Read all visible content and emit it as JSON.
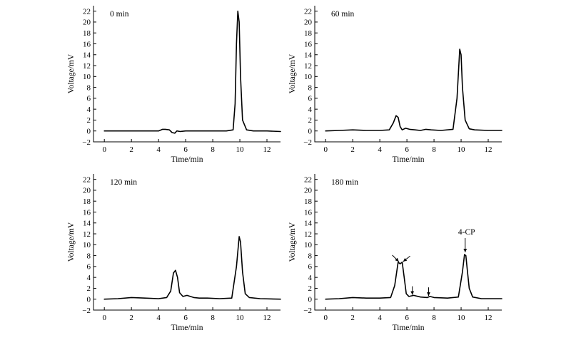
{
  "figure": {
    "x_axis_label": "Time/min",
    "y_axis_label": "Voltage/mV"
  },
  "chart_data": [
    {
      "type": "line",
      "title": "0 min",
      "xlabel": "Time/min",
      "ylabel": "Voltage/mV",
      "xlim": [
        -0.8,
        13
      ],
      "ylim": [
        -2,
        23
      ],
      "x_ticks": [
        0,
        2,
        4,
        6,
        8,
        10,
        12
      ],
      "y_ticks": [
        -2,
        0,
        2,
        4,
        6,
        8,
        10,
        12,
        14,
        16,
        18,
        20,
        22
      ],
      "series": [
        {
          "x": [
            0,
            2,
            4,
            4.3,
            4.5,
            4.8,
            5.0,
            5.2,
            5.35,
            5.6,
            6.0,
            7.0,
            8.0,
            9.0,
            9.5,
            9.65,
            9.75,
            9.85,
            9.95,
            10.05,
            10.2,
            10.5,
            11,
            12,
            13
          ],
          "y": [
            0,
            0,
            0,
            0.3,
            0.3,
            0.2,
            -0.3,
            -0.4,
            0,
            -0.1,
            0,
            0,
            0,
            0,
            0.2,
            5,
            16,
            22,
            20,
            10,
            2,
            0.2,
            0,
            0,
            -0.1
          ]
        }
      ],
      "annotations": []
    },
    {
      "type": "line",
      "title": "60 min",
      "xlabel": "Time/min",
      "ylabel": "Voltage/mV",
      "xlim": [
        -0.8,
        13
      ],
      "ylim": [
        -2,
        23
      ],
      "x_ticks": [
        0,
        2,
        4,
        6,
        8,
        10,
        12
      ],
      "y_ticks": [
        -2,
        0,
        2,
        4,
        6,
        8,
        10,
        12,
        14,
        16,
        18,
        20,
        22
      ],
      "series": [
        {
          "x": [
            0,
            1,
            2,
            3,
            4,
            4.7,
            5.0,
            5.2,
            5.35,
            5.5,
            5.65,
            5.9,
            6.2,
            6.6,
            7.0,
            7.4,
            7.8,
            8.5,
            9.4,
            9.7,
            9.9,
            10.0,
            10.1,
            10.3,
            10.6,
            11,
            12,
            13
          ],
          "y": [
            0,
            0.1,
            0.2,
            0.1,
            0.1,
            0.2,
            1.5,
            2.8,
            2.5,
            0.8,
            0.2,
            0.5,
            0.3,
            0.2,
            0.1,
            0.3,
            0.2,
            0.1,
            0.3,
            6,
            15,
            14,
            8,
            2,
            0.4,
            0.2,
            0.1,
            0.1
          ]
        }
      ],
      "annotations": []
    },
    {
      "type": "line",
      "title": "120 min",
      "xlabel": "Time/min",
      "ylabel": "Voltage/mV",
      "xlim": [
        -0.8,
        13
      ],
      "ylim": [
        -2,
        23
      ],
      "x_ticks": [
        0,
        2,
        4,
        6,
        8,
        10,
        12
      ],
      "y_ticks": [
        -2,
        0,
        2,
        4,
        6,
        8,
        10,
        12,
        14,
        16,
        18,
        20,
        22
      ],
      "series": [
        {
          "x": [
            0,
            1,
            2,
            3,
            4,
            4.6,
            4.9,
            5.1,
            5.25,
            5.4,
            5.55,
            5.8,
            6.1,
            6.6,
            7.0,
            7.6,
            8.5,
            9.4,
            9.75,
            9.95,
            10.05,
            10.2,
            10.4,
            10.7,
            11.5,
            13
          ],
          "y": [
            0,
            0.1,
            0.3,
            0.2,
            0.1,
            0.3,
            1.5,
            4.8,
            5.3,
            4.0,
            1.2,
            0.5,
            0.7,
            0.3,
            0.2,
            0.2,
            0.1,
            0.2,
            6,
            11.5,
            10.5,
            5,
            1,
            0.3,
            0.1,
            0
          ]
        }
      ],
      "annotations": []
    },
    {
      "type": "line",
      "title": "180 min",
      "xlabel": "Time/min",
      "ylabel": "Voltage/mV",
      "xlim": [
        -0.8,
        13
      ],
      "ylim": [
        -2,
        23
      ],
      "x_ticks": [
        0,
        2,
        4,
        6,
        8,
        10,
        12
      ],
      "y_ticks": [
        -2,
        0,
        2,
        4,
        6,
        8,
        10,
        12,
        14,
        16,
        18,
        20,
        22
      ],
      "series": [
        {
          "x": [
            0,
            1,
            2,
            3,
            4,
            4.8,
            5.1,
            5.35,
            5.5,
            5.65,
            5.8,
            5.95,
            6.15,
            6.5,
            7.0,
            7.5,
            7.7,
            8.0,
            9.0,
            9.8,
            10.1,
            10.25,
            10.35,
            10.45,
            10.6,
            10.85,
            11.5,
            13
          ],
          "y": [
            0,
            0.1,
            0.3,
            0.2,
            0.2,
            0.3,
            2.5,
            6.8,
            6.5,
            6.8,
            4.0,
            1.0,
            0.5,
            0.7,
            0.4,
            0.3,
            0.5,
            0.3,
            0.2,
            0.4,
            5.0,
            8.2,
            8.0,
            5.5,
            2.0,
            0.4,
            0.1,
            0.1
          ]
        }
      ],
      "annotations": [
        {
          "label": "",
          "x": 5.4,
          "y": 6.9,
          "direction": "down-right"
        },
        {
          "label": "",
          "x": 5.72,
          "y": 6.9,
          "direction": "down-left"
        },
        {
          "label": "",
          "x": 6.4,
          "y": 0.8,
          "direction": "down"
        },
        {
          "label": "",
          "x": 7.6,
          "y": 0.6,
          "direction": "down"
        },
        {
          "label": "4-CP",
          "x": 10.3,
          "y": 8.6,
          "direction": "down"
        }
      ]
    }
  ]
}
